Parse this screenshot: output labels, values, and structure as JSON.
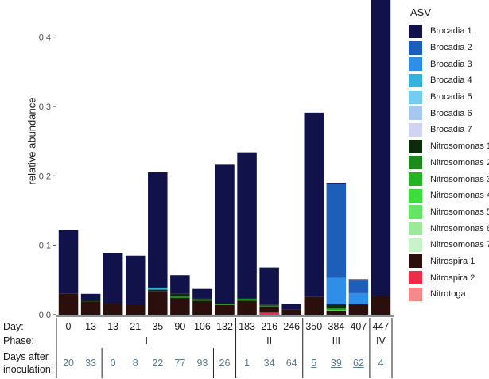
{
  "chart_data": {
    "type": "bar",
    "stacked": true,
    "ylabel": "relative abundance",
    "ylim": [
      0,
      0.45
    ],
    "yticks": [
      0.0,
      0.1,
      0.2,
      0.3,
      0.4
    ],
    "ytick_labels": [
      "0.0",
      "0.1",
      "0.2",
      "0.3",
      "0.4"
    ],
    "grid": false,
    "legend_position": "right",
    "legend_title": "ASV",
    "legend": [
      {
        "name": "Brocadia 1",
        "color": "#12124a"
      },
      {
        "name": "Brocadia 2",
        "color": "#1d5fb8"
      },
      {
        "name": "Brocadia 3",
        "color": "#2f8ee8"
      },
      {
        "name": "Brocadia 4",
        "color": "#37b0da"
      },
      {
        "name": "Brocadia 5",
        "color": "#74ccee"
      },
      {
        "name": "Brocadia 6",
        "color": "#a6c8ef"
      },
      {
        "name": "Brocadia 7",
        "color": "#cfd4f0"
      },
      {
        "name": "Nitrosomonas 1",
        "color": "#0c2a0c"
      },
      {
        "name": "Nitrosomonas 2",
        "color": "#1e8a1e"
      },
      {
        "name": "Nitrosomonas 3",
        "color": "#23b323"
      },
      {
        "name": "Nitrosomonas 4",
        "color": "#3ddc3d"
      },
      {
        "name": "Nitrosomonas 5",
        "color": "#66e466"
      },
      {
        "name": "Nitrosomonas 6",
        "color": "#9ce99c"
      },
      {
        "name": "Nitrosomonas 7",
        "color": "#c8f3c8"
      },
      {
        "name": "Nitrospira 1",
        "color": "#2a0f0c"
      },
      {
        "name": "Nitrospira 2",
        "color": "#ee2c4a"
      },
      {
        "name": "Nitrotoga",
        "color": "#f58a8a"
      }
    ],
    "row_labels": {
      "day": "Day:",
      "phase": "Phase:",
      "dai_line1": "Days after",
      "dai_line2": "inoculation:"
    },
    "samples": [
      {
        "day": "0",
        "dai": "20",
        "dai_underlined": false,
        "segments": {
          "Nitrospira 1": 0.03,
          "Brocadia 1": 0.092
        }
      },
      {
        "day": "13",
        "dai": "33",
        "dai_underlined": false,
        "segments": {
          "Nitrospira 1": 0.019,
          "Nitrosomonas 1": 0.002,
          "Brocadia 1": 0.009
        }
      },
      {
        "day": "13",
        "dai": "0",
        "dai_underlined": false,
        "segments": {
          "Nitrospira 1": 0.016,
          "Brocadia 1": 0.073
        }
      },
      {
        "day": "21",
        "dai": "8",
        "dai_underlined": false,
        "segments": {
          "Nitrospira 1": 0.015,
          "Brocadia 1": 0.07
        }
      },
      {
        "day": "35",
        "dai": "22",
        "dai_underlined": false,
        "segments": {
          "Nitrospira 1": 0.034,
          "Nitrosomonas 1": 0.002,
          "Brocadia 4": 0.003,
          "Brocadia 1": 0.166
        }
      },
      {
        "day": "90",
        "dai": "77",
        "dai_underlined": false,
        "segments": {
          "Nitrospira 1": 0.024,
          "Nitrosomonas 1": 0.004,
          "Nitrosomonas 2": 0.002,
          "Brocadia 1": 0.027
        }
      },
      {
        "day": "106",
        "dai": "93",
        "dai_underlined": false,
        "segments": {
          "Nitrospira 1": 0.02,
          "Nitrosomonas 1": 0.002,
          "Nitrosomonas 2": 0.002,
          "Brocadia 1": 0.013
        }
      },
      {
        "day": "132",
        "dai": "26",
        "dai_underlined": false,
        "segments": {
          "Nitrospira 1": 0.014,
          "Nitrosomonas 2": 0.002,
          "Brocadia 1": 0.2
        }
      },
      {
        "day": "183",
        "dai": "1",
        "dai_underlined": false,
        "segments": {
          "Nitrospira 1": 0.02,
          "Nitrosomonas 2": 0.003,
          "Brocadia 1": 0.211
        }
      },
      {
        "day": "216",
        "dai": "34",
        "dai_underlined": false,
        "segments": {
          "Nitrospira 2": 0.003,
          "Nitrospira 1": 0.008,
          "Nitrosomonas 1": 0.001,
          "Nitrosomonas 2": 0.002,
          "Brocadia 1": 0.054
        }
      },
      {
        "day": "246",
        "dai": "64",
        "dai_underlined": false,
        "segments": {
          "Nitrospira 1": 0.007,
          "Brocadia 1": 0.009
        }
      },
      {
        "day": "350",
        "dai": "5",
        "dai_underlined": true,
        "segments": {
          "Nitrospira 1": 0.026,
          "Brocadia 1": 0.265
        }
      },
      {
        "day": "384",
        "dai": "39",
        "dai_underlined": true,
        "segments": {
          "Nitrospira 1": 0.005,
          "Nitrosomonas 1": 0.006,
          "Nitrosomonas 2": 0.002,
          "Nitrosomonas 4": 0.002,
          "Brocadia 3": 0.038,
          "Brocadia 2": 0.135,
          "Brocadia 1": 0.002
        }
      },
      {
        "day": "407",
        "dai": "62",
        "dai_underlined": true,
        "segments": {
          "Nitrospira 1": 0.015,
          "Brocadia 3": 0.016,
          "Brocadia 2": 0.018,
          "Brocadia 1": 0.002
        }
      },
      {
        "day": "447",
        "dai": "4",
        "dai_underlined": false,
        "segments": {
          "Nitrospira 1": 0.027,
          "Brocadia 1": 0.428
        }
      }
    ],
    "phases": [
      {
        "label": "I",
        "first": 0,
        "last": 7
      },
      {
        "label": "II",
        "first": 8,
        "last": 10
      },
      {
        "label": "III",
        "first": 11,
        "last": 13
      },
      {
        "label": "IV",
        "first": 14,
        "last": 14
      }
    ],
    "dai_separators_after": [
      1,
      6
    ]
  }
}
